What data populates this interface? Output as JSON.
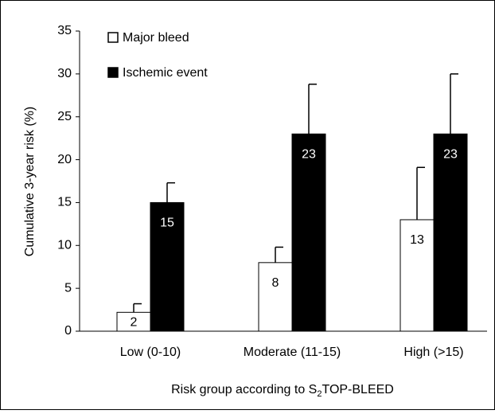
{
  "chart_data": {
    "type": "bar",
    "y_label": "Cumulative 3-year risk (%)",
    "x_label": {
      "text": "Risk group according to S",
      "sub": "2",
      "rest": "TOP-BLEED"
    },
    "categories": [
      "Low (0-10)",
      "Moderate (11-15)",
      "High (>15)"
    ],
    "series": [
      {
        "name": "Major bleed",
        "color": "#ffffff",
        "values": [
          2.2,
          8,
          13
        ],
        "value_labels": [
          "2",
          "8",
          "13"
        ],
        "errors": [
          1.0,
          1.8,
          6.1
        ],
        "label_color": "#000000"
      },
      {
        "name": "Ischemic event",
        "color": "#000000",
        "values": [
          15,
          23,
          23
        ],
        "value_labels": [
          "15",
          "23",
          "23"
        ],
        "errors": [
          2.3,
          5.8,
          7.0
        ],
        "label_color": "#ffffff"
      }
    ],
    "ylim": [
      0,
      35
    ],
    "yticks": [
      0,
      5,
      10,
      15,
      20,
      25,
      30,
      35
    ],
    "grid": false,
    "legend": "top-left"
  }
}
